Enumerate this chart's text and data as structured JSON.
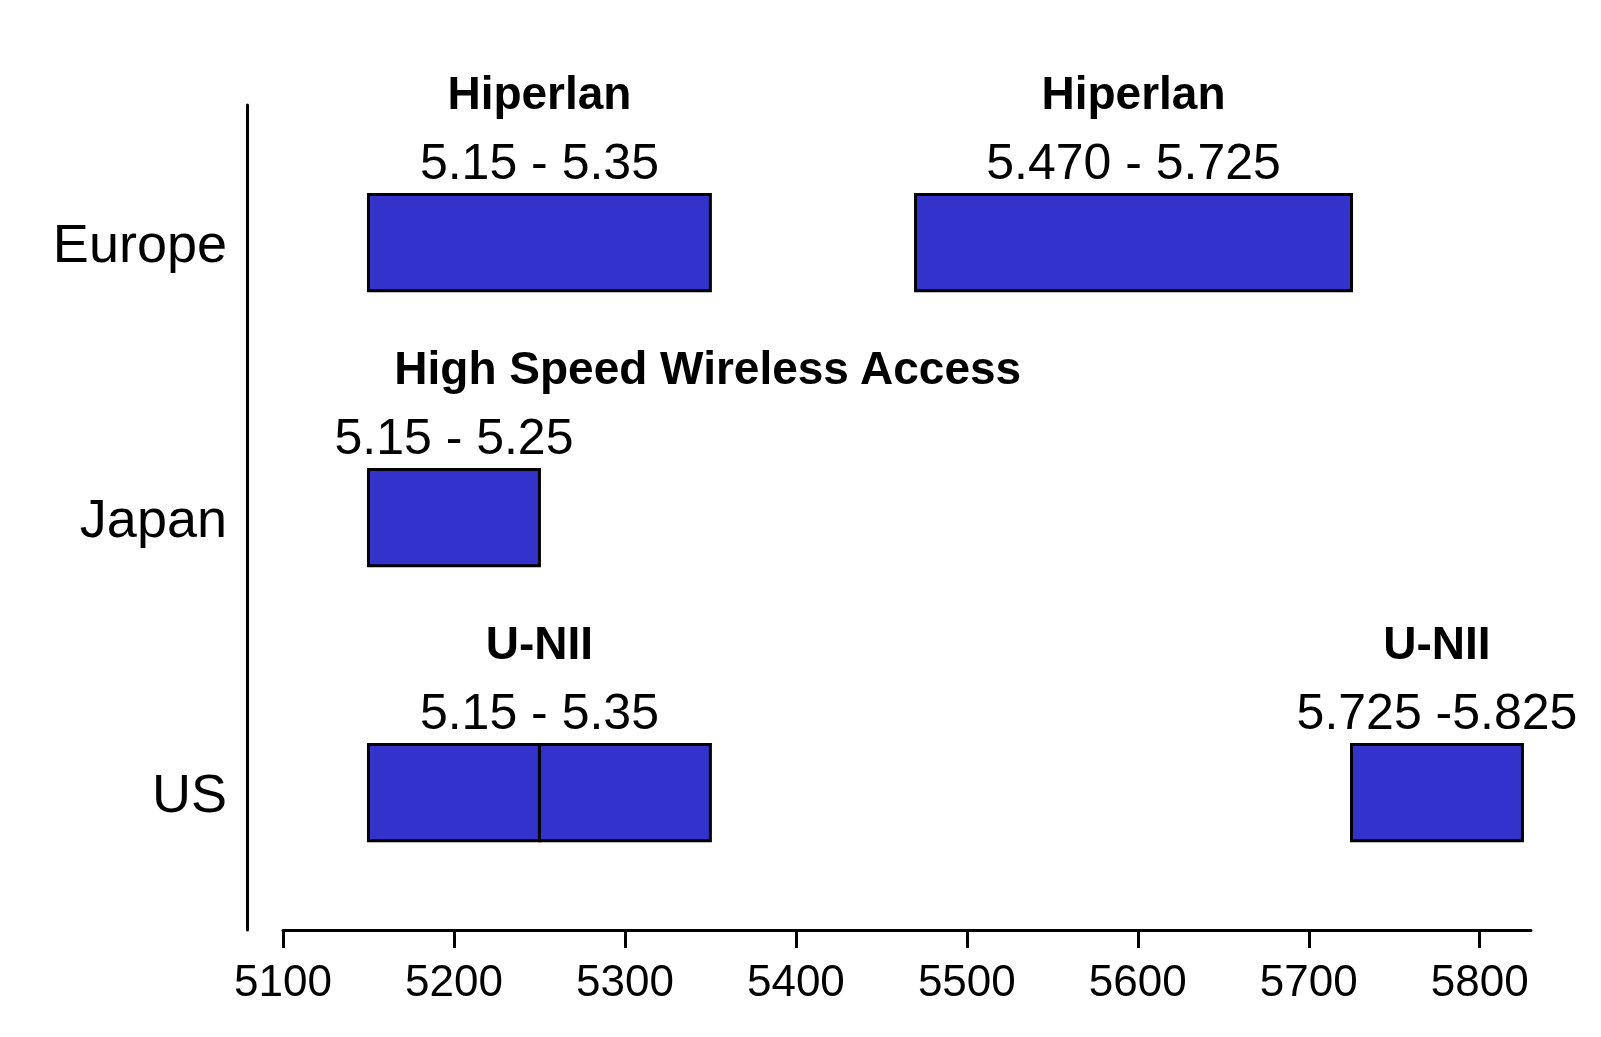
{
  "chart_data": {
    "type": "bar",
    "orientation": "horizontal",
    "categories": [
      "Europe",
      "Japan",
      "US"
    ],
    "series": [
      {
        "color": "#3333cc",
        "base": [
          5150,
          5150,
          5150
        ],
        "values": [
          200,
          100,
          100
        ]
      },
      {
        "color": "#3333cc",
        "base": [
          null,
          null,
          5250
        ],
        "values": [
          null,
          null,
          100
        ]
      },
      {
        "color": "#3333cc",
        "base": [
          5470,
          null,
          5725
        ],
        "values": [
          255,
          null,
          100
        ]
      }
    ],
    "annotations": [
      "Hiperlan",
      "5.15 - 5.35",
      "Hiperlan",
      "5.470 - 5.725",
      "High Speed Wireless Access",
      "5.15 - 5.25",
      "U-NII",
      "5.15 - 5.35",
      "U-NII",
      "5.725 -5.825"
    ],
    "xlim": [
      5100,
      5830
    ],
    "xticks": [
      5100,
      5200,
      5300,
      5400,
      5500,
      5600,
      5700,
      5800
    ],
    "grid": false
  }
}
